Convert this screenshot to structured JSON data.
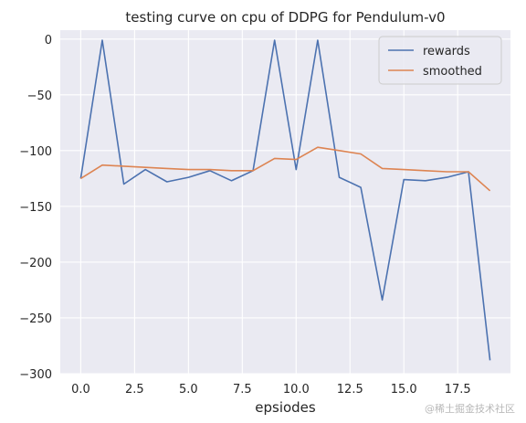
{
  "chart_data": {
    "type": "line",
    "title": "testing curve on cpu of DDPG for Pendulum-v0",
    "xlabel": "epsiodes",
    "ylabel": "",
    "xlim": [
      -0.95,
      19.95
    ],
    "ylim": [
      -300,
      8
    ],
    "xticks": [
      0.0,
      2.5,
      5.0,
      7.5,
      10.0,
      12.5,
      15.0,
      17.5
    ],
    "xtick_labels": [
      "0.0",
      "2.5",
      "5.0",
      "7.5",
      "10.0",
      "12.5",
      "15.0",
      "17.5"
    ],
    "yticks": [
      0,
      -50,
      -100,
      -150,
      -200,
      -250,
      -300
    ],
    "ytick_labels": [
      "0",
      "−50",
      "−100",
      "−150",
      "−200",
      "−250",
      "−300"
    ],
    "grid": true,
    "legend_position": "top-right",
    "x": [
      0,
      1,
      2,
      3,
      4,
      5,
      6,
      7,
      8,
      9,
      10,
      11,
      12,
      13,
      14,
      15,
      16,
      17,
      18,
      19
    ],
    "series": [
      {
        "name": "rewards",
        "color": "#4c72b0",
        "values": [
          -125,
          -1,
          -130,
          -117,
          -128,
          -124,
          -118,
          -127,
          -118,
          -1,
          -117,
          -1,
          -124,
          -133,
          -234,
          -126,
          -127,
          -124,
          -119,
          -288
        ]
      },
      {
        "name": "smoothed",
        "color": "#dd8452",
        "values": [
          -125,
          -113,
          -114,
          -115,
          -116,
          -117,
          -117,
          -118,
          -118,
          -107,
          -108,
          -97,
          -100,
          -103,
          -116,
          -117,
          -118,
          -119,
          -119,
          -136
        ]
      }
    ]
  },
  "watermark": "@稀土掘金技术社区"
}
